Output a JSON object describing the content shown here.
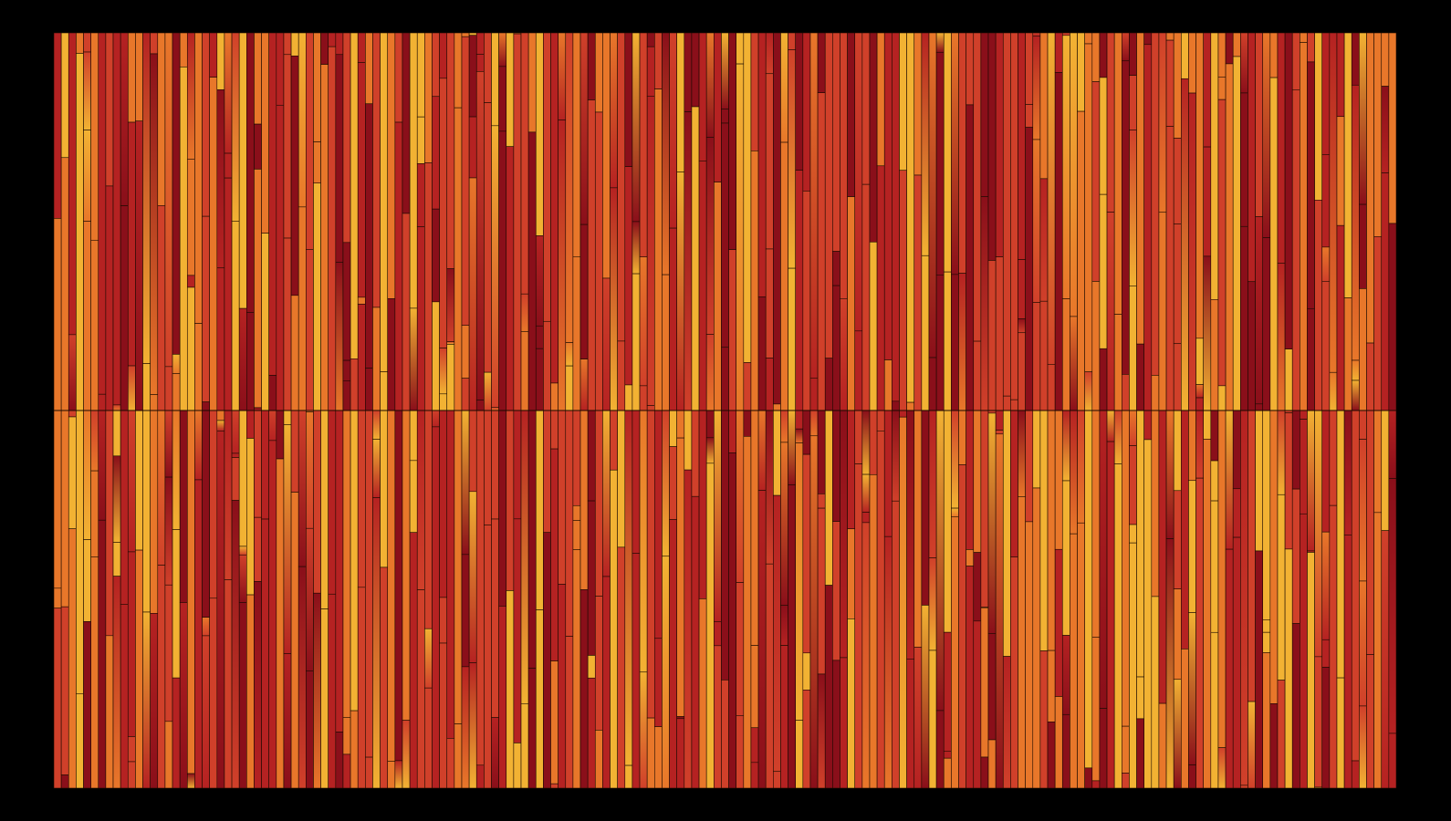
{
  "artwork": {
    "background_color": "#000000",
    "stroke_color": "#1a0a00",
    "palette": [
      "#f2b233",
      "#e8772a",
      "#d0402a",
      "#b52222",
      "#8a0f1a"
    ],
    "style": "vertical-stripes-two-rows-random-splits",
    "columns_per_row": 181,
    "rows": 2,
    "seed": 2771
  }
}
